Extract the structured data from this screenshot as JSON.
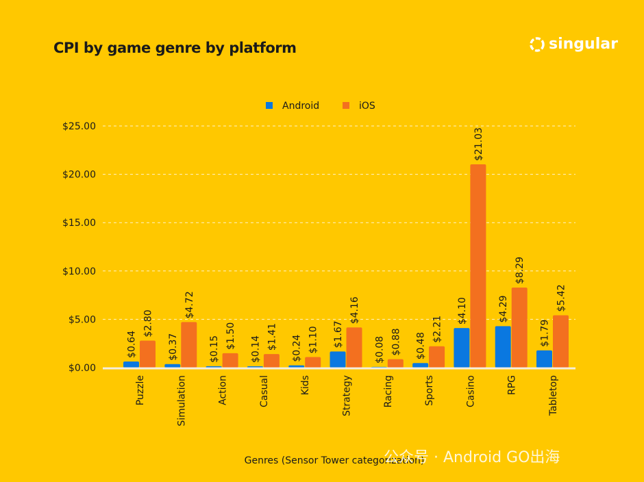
{
  "brand": "singular",
  "watermark": "公众号 · Android GO出海",
  "colors": {
    "background": "#FFC800",
    "android": "#0A78E0",
    "ios": "#F3701F"
  },
  "chart_data": {
    "type": "bar",
    "title": "CPI by game genre by platform",
    "xlabel": "Genres (Sensor Tower categorization)",
    "ylabel": "",
    "ylim": [
      0,
      25
    ],
    "yticks": [
      "$0.00",
      "$5.00",
      "$10.00",
      "$15.00",
      "$20.00",
      "$25.00"
    ],
    "grid": true,
    "legend": "top-center",
    "categories": [
      "Puzzle",
      "Simulation",
      "Action",
      "Casual",
      "Kids",
      "Strategy",
      "Racing",
      "Sports",
      "Casino",
      "RPG",
      "Tabletop"
    ],
    "series": [
      {
        "name": "Android",
        "values": [
          0.64,
          0.37,
          0.15,
          0.14,
          0.24,
          1.67,
          0.08,
          0.48,
          4.1,
          4.29,
          1.79
        ],
        "labels": [
          "$0.64",
          "$0.37",
          "$0.15",
          "$0.14",
          "$0.24",
          "$1.67",
          "$0.08",
          "$0.48",
          "$4.10",
          "$4.29",
          "$1.79"
        ]
      },
      {
        "name": "iOS",
        "values": [
          2.8,
          4.72,
          1.5,
          1.41,
          1.1,
          4.16,
          0.88,
          2.21,
          21.03,
          8.29,
          5.42
        ],
        "labels": [
          "$2.80",
          "$4.72",
          "$1.50",
          "$1.41",
          "$1.10",
          "$4.16",
          "$0.88",
          "$2.21",
          "$21.03",
          "$8.29",
          "$5.42"
        ]
      }
    ]
  }
}
